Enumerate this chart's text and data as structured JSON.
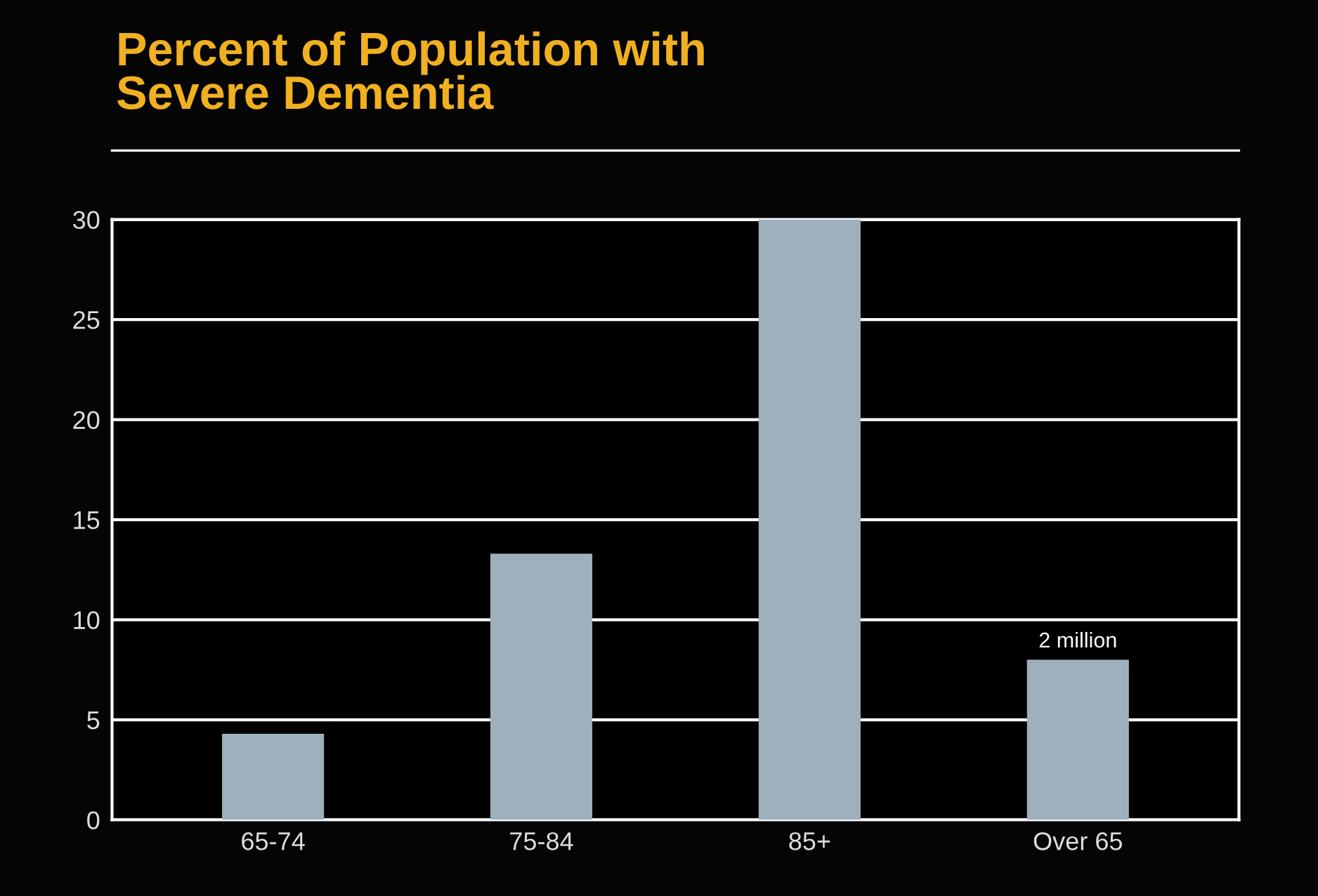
{
  "chart_data": {
    "type": "bar",
    "title": "Percent of Population with\nSevere Dementia",
    "categories": [
      "65-74",
      "75-84",
      "85+",
      "Over 65"
    ],
    "values": [
      4.3,
      13.3,
      30,
      8.0
    ],
    "color": "#9db0bb",
    "ylim": [
      0,
      30
    ],
    "yticks": [
      0,
      5,
      10,
      15,
      20,
      25,
      30
    ],
    "grid": "y",
    "annotations": [
      {
        "text": "2 million",
        "x": "Over 65",
        "y": 8.0
      }
    ]
  }
}
